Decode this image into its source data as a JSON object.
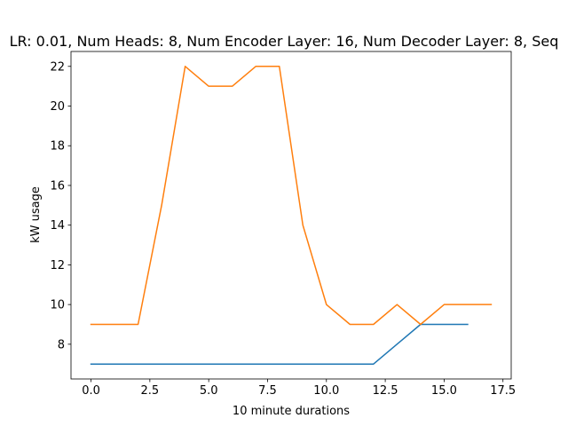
{
  "chart_data": {
    "type": "line",
    "title": "LR: 0.01, Num Heads: 8, Num Encoder Layer: 16, Num Decoder Layer: 8, Seq",
    "xlabel": "10 minute durations",
    "ylabel": "kW usage",
    "xlim": [
      -0.85,
      17.85
    ],
    "ylim": [
      6.25,
      22.75
    ],
    "xticks": [
      0.0,
      2.5,
      5.0,
      7.5,
      10.0,
      12.5,
      15.0,
      17.5
    ],
    "xtick_labels": [
      "0.0",
      "2.5",
      "5.0",
      "7.5",
      "10.0",
      "12.5",
      "15.0",
      "17.5"
    ],
    "yticks": [
      8,
      10,
      12,
      14,
      16,
      18,
      20,
      22
    ],
    "ytick_labels": [
      "8",
      "10",
      "12",
      "14",
      "16",
      "18",
      "20",
      "22"
    ],
    "grid": false,
    "series": [
      {
        "color": "#1f77b4",
        "x": [
          0,
          1,
          2,
          3,
          4,
          5,
          6,
          7,
          8,
          9,
          10,
          11,
          12,
          13,
          14,
          15,
          16
        ],
        "values": [
          7,
          7,
          7,
          7,
          7,
          7,
          7,
          7,
          7,
          7,
          7,
          7,
          7,
          8,
          9,
          9,
          9
        ]
      },
      {
        "color": "#ff7f0e",
        "x": [
          0,
          1,
          2,
          3,
          4,
          5,
          6,
          7,
          8,
          9,
          10,
          11,
          12,
          13,
          14,
          15,
          16,
          17
        ],
        "values": [
          9,
          9,
          9,
          15,
          22,
          21,
          21,
          22,
          22,
          14,
          10,
          9,
          9,
          10,
          9,
          10,
          10,
          10
        ]
      }
    ]
  }
}
